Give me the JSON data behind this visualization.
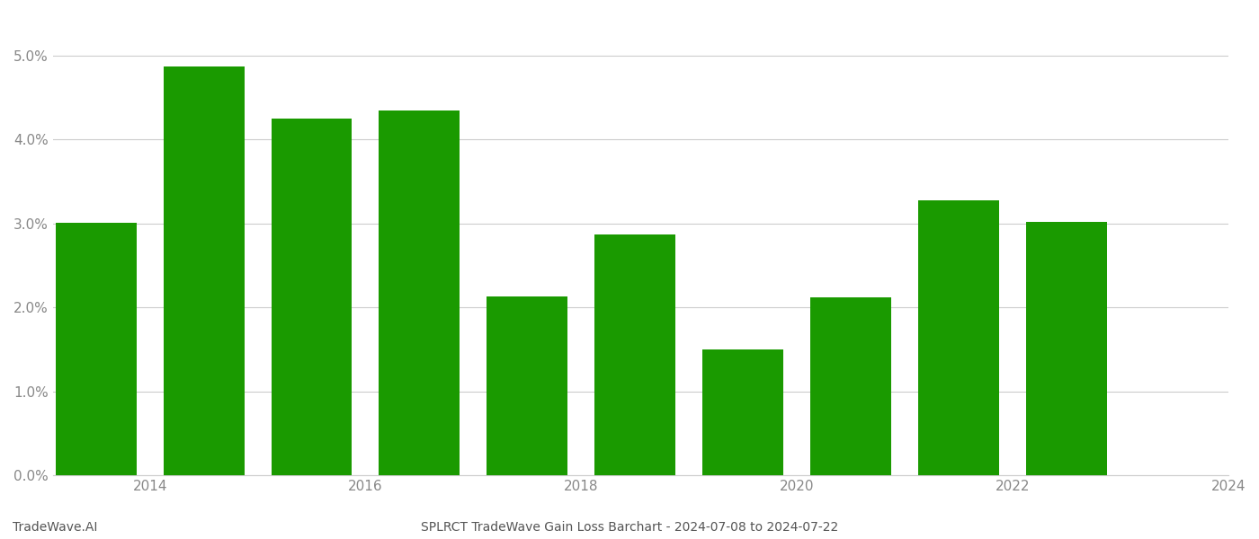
{
  "years": [
    2014,
    2015,
    2016,
    2017,
    2018,
    2019,
    2020,
    2021,
    2022,
    2023
  ],
  "values": [
    0.0301,
    0.0487,
    0.0425,
    0.0435,
    0.0213,
    0.0287,
    0.015,
    0.0212,
    0.0328,
    0.0302
  ],
  "bar_color": "#1a9a00",
  "background_color": "#ffffff",
  "title": "SPLRCT TradeWave Gain Loss Barchart - 2024-07-08 to 2024-07-22",
  "watermark": "TradeWave.AI",
  "ylim": [
    0.0,
    0.055
  ],
  "yticks": [
    0.0,
    0.01,
    0.02,
    0.03,
    0.04,
    0.05
  ],
  "xtick_positions": [
    2014.5,
    2016.5,
    2018.5,
    2020.5,
    2022.5,
    2024.5
  ],
  "xtick_labels": [
    "2014",
    "2016",
    "2018",
    "2020",
    "2022",
    "2024"
  ],
  "xlim": [
    2013.6,
    2024.4
  ],
  "grid_color": "#cccccc",
  "tick_label_color": "#888888",
  "title_color": "#555555",
  "watermark_color": "#555555",
  "bar_width": 0.75
}
